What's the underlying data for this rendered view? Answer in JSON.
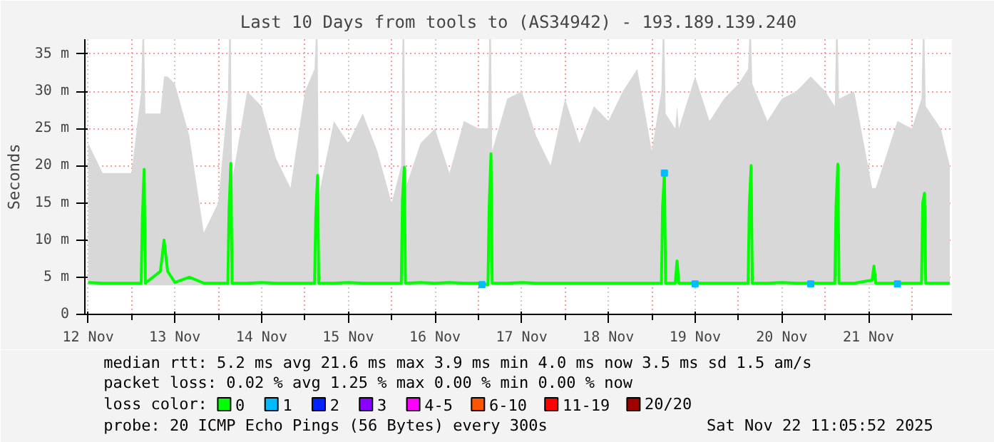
{
  "chart_data": {
    "type": "line",
    "title": "Last 10 Days from tools to (AS34942) - 193.189.139.240",
    "ylabel": "Seconds",
    "xlim": [
      "2025-11-12T11:05",
      "2025-11-22T11:05"
    ],
    "xticks": [
      {
        "value": "2025-11-12T12:00",
        "label": "12 Nov"
      },
      {
        "value": "2025-11-13T00:00",
        "label": null
      },
      {
        "value": "2025-11-13T12:00",
        "label": "13 Nov"
      },
      {
        "value": "2025-11-14T00:00",
        "label": null
      },
      {
        "value": "2025-11-14T12:00",
        "label": "14 Nov"
      },
      {
        "value": "2025-11-15T00:00",
        "label": null
      },
      {
        "value": "2025-11-15T12:00",
        "label": "15 Nov"
      },
      {
        "value": "2025-11-16T00:00",
        "label": null
      },
      {
        "value": "2025-11-16T12:00",
        "label": "16 Nov"
      },
      {
        "value": "2025-11-17T00:00",
        "label": null
      },
      {
        "value": "2025-11-17T12:00",
        "label": "17 Nov"
      },
      {
        "value": "2025-11-18T00:00",
        "label": null
      },
      {
        "value": "2025-11-18T12:00",
        "label": "18 Nov"
      },
      {
        "value": "2025-11-19T00:00",
        "label": null
      },
      {
        "value": "2025-11-19T12:00",
        "label": "19 Nov"
      },
      {
        "value": "2025-11-20T00:00",
        "label": null
      },
      {
        "value": "2025-11-20T12:00",
        "label": "20 Nov"
      },
      {
        "value": "2025-11-21T00:00",
        "label": null
      },
      {
        "value": "2025-11-21T12:00",
        "label": "21 Nov"
      },
      {
        "value": "2025-11-22T00:00",
        "label": null
      }
    ],
    "ylim": [
      0,
      37
    ],
    "yticks": [
      0,
      {
        "value": 5,
        "label": "5 m"
      },
      {
        "value": 10,
        "label": "10 m"
      },
      {
        "value": 15,
        "label": "15 m"
      },
      {
        "value": 20,
        "label": "20 m"
      },
      {
        "value": 25,
        "label": "25 m"
      },
      {
        "value": 30,
        "label": "30 m"
      },
      {
        "value": 35,
        "label": "35 m"
      }
    ],
    "grid": true,
    "legend": "bottom",
    "legend_title": "loss color:",
    "series": [
      {
        "name": "0",
        "color": "#00ff00",
        "x": [
          "2025-11-12T12:00",
          "2025-11-12T16:00",
          "2025-11-12T20:00",
          "2025-11-13T00:00",
          "2025-11-13T02:40",
          "2025-11-13T03:00",
          "2025-11-13T03:30",
          "2025-11-13T03:50",
          "2025-11-13T08:00",
          "2025-11-13T09:00",
          "2025-11-13T10:00",
          "2025-11-13T12:00",
          "2025-11-13T16:00",
          "2025-11-13T20:00",
          "2025-11-14T00:00",
          "2025-11-14T02:40",
          "2025-11-14T03:00",
          "2025-11-14T03:30",
          "2025-11-14T03:50",
          "2025-11-14T08:00",
          "2025-11-14T12:00",
          "2025-11-14T16:00",
          "2025-11-14T20:00",
          "2025-11-15T00:00",
          "2025-11-15T02:40",
          "2025-11-15T03:00",
          "2025-11-15T03:30",
          "2025-11-15T03:50",
          "2025-11-15T08:00",
          "2025-11-15T12:00",
          "2025-11-15T16:00",
          "2025-11-15T20:00",
          "2025-11-16T00:00",
          "2025-11-16T02:40",
          "2025-11-16T03:00",
          "2025-11-16T03:30",
          "2025-11-16T03:50",
          "2025-11-16T08:00",
          "2025-11-16T12:00",
          "2025-11-16T16:00",
          "2025-11-16T20:00",
          "2025-11-17T00:00",
          "2025-11-17T02:40",
          "2025-11-17T03:00",
          "2025-11-17T03:30",
          "2025-11-17T03:50",
          "2025-11-17T08:00",
          "2025-11-17T12:00",
          "2025-11-17T16:00",
          "2025-11-17T20:00",
          "2025-11-18T00:00",
          "2025-11-18T04:00",
          "2025-11-18T08:00",
          "2025-11-18T12:00",
          "2025-11-18T16:00",
          "2025-11-18T20:00",
          "2025-11-19T00:00",
          "2025-11-19T02:40",
          "2025-11-19T03:00",
          "2025-11-19T03:30",
          "2025-11-19T03:50",
          "2025-11-19T06:30",
          "2025-11-19T07:00",
          "2025-11-19T07:30",
          "2025-11-19T12:00",
          "2025-11-19T16:00",
          "2025-11-19T20:00",
          "2025-11-20T00:00",
          "2025-11-20T02:40",
          "2025-11-20T03:00",
          "2025-11-20T03:30",
          "2025-11-20T03:50",
          "2025-11-20T08:00",
          "2025-11-20T12:00",
          "2025-11-20T16:00",
          "2025-11-20T20:00",
          "2025-11-21T00:00",
          "2025-11-21T02:40",
          "2025-11-21T03:00",
          "2025-11-21T03:30",
          "2025-11-21T03:50",
          "2025-11-21T08:00",
          "2025-11-21T13:00",
          "2025-11-21T13:30",
          "2025-11-21T14:00",
          "2025-11-21T20:00",
          "2025-11-22T00:00",
          "2025-11-22T02:40",
          "2025-11-22T03:00",
          "2025-11-22T03:30",
          "2025-11-22T03:50",
          "2025-11-22T08:00",
          "2025-11-22T10:30"
        ],
        "values": [
          4.3,
          4.2,
          4.2,
          4.2,
          4.2,
          13,
          19.5,
          4.2,
          5.8,
          10,
          5.8,
          4.3,
          5,
          4.2,
          4.2,
          4.2,
          14.2,
          20.3,
          4.2,
          4.2,
          4.3,
          4.2,
          4.2,
          4.2,
          4.2,
          13.3,
          18.7,
          4.2,
          4.2,
          4.3,
          4.2,
          4.2,
          4.2,
          4.2,
          15.5,
          19.8,
          4.2,
          4.3,
          4.2,
          4.3,
          4.2,
          4.2,
          4,
          14.5,
          21.6,
          4.2,
          4.2,
          4.3,
          4.2,
          4.2,
          4.2,
          4.2,
          4.2,
          4.2,
          4.2,
          4.2,
          4.2,
          4.2,
          14.5,
          19,
          4.2,
          4.2,
          7.2,
          4.2,
          4.2,
          4.2,
          4.2,
          4.2,
          4.2,
          14.5,
          20,
          4.2,
          4.2,
          4.3,
          4.2,
          4.2,
          4.2,
          4.2,
          14.5,
          20.2,
          4.2,
          4.2,
          4.6,
          6.5,
          4.2,
          4.2,
          4.2,
          4.2,
          15,
          16.3,
          4.2,
          4.2,
          4.2
        ],
        "lower": [
          3.9,
          3.9,
          3.9,
          3.9,
          3.9,
          3.9,
          3.9,
          3.9,
          3.9,
          3.9,
          3.9,
          3.9,
          3.9,
          3.9,
          3.9,
          3.9,
          3.9,
          3.9,
          3.9,
          3.9,
          3.9,
          3.9,
          3.9,
          3.9,
          3.9,
          3.9,
          3.9,
          3.9,
          3.9,
          3.9,
          3.9,
          3.9,
          3.9,
          3.9,
          3.9,
          3.9,
          3.9,
          3.9,
          3.9,
          3.9,
          3.9,
          3.9,
          3.9,
          3.9,
          3.9,
          3.9,
          3.9,
          3.9,
          3.9,
          3.9,
          3.9,
          3.9,
          3.9,
          3.9,
          3.9,
          3.9,
          3.9,
          3.9,
          3.9,
          3.9,
          3.9,
          3.9,
          3.9,
          3.9,
          3.9,
          3.9,
          3.9,
          3.9,
          3.9,
          3.9,
          3.9,
          3.9,
          3.9,
          3.9,
          3.9,
          3.9,
          3.9,
          3.9,
          3.9,
          3.9,
          3.9,
          3.9,
          3.9,
          3.9,
          3.9,
          3.9,
          3.9,
          3.9,
          3.9,
          3.9,
          3.9,
          3.9,
          3.9
        ],
        "upper": [
          23,
          19,
          19,
          19,
          30,
          37,
          37,
          27,
          27,
          32,
          32,
          31,
          24,
          11,
          15,
          29,
          37,
          37,
          18,
          30,
          28,
          21,
          17,
          30,
          33,
          37,
          37,
          16,
          26,
          23,
          27,
          22,
          15,
          20,
          37,
          37,
          17,
          23,
          25,
          19,
          26,
          25,
          25,
          37,
          37,
          22,
          29,
          30,
          24,
          20,
          29,
          23,
          28,
          26,
          30,
          33,
          22,
          30,
          37,
          37,
          27,
          25,
          28,
          25,
          32,
          26,
          29,
          31,
          33,
          37,
          37,
          31,
          26,
          29,
          30,
          32,
          30,
          28,
          37,
          37,
          29,
          30,
          17,
          17,
          17,
          26,
          25,
          29,
          37,
          37,
          28,
          25,
          20
        ]
      },
      {
        "name": "1",
        "color": "#00bbff",
        "type": "scatter",
        "marker": "square",
        "x": [
          "2025-11-17T01:00",
          "2025-11-19T03:30",
          "2025-11-19T12:00",
          "2025-11-20T20:00",
          "2025-11-21T20:00"
        ],
        "values": [
          4,
          19,
          4.1,
          4.1,
          4.1
        ]
      },
      {
        "name": "2",
        "color": "#0022ff",
        "type": "scatter",
        "marker": "square"
      },
      {
        "name": "3",
        "color": "#8a00ff",
        "type": "scatter",
        "marker": "square"
      },
      {
        "name": "4-5",
        "color": "#ff00ff",
        "type": "scatter",
        "marker": "square"
      },
      {
        "name": "6-10",
        "color": "#ff5500",
        "type": "scatter",
        "marker": "square"
      },
      {
        "name": "11-19",
        "color": "#ff0000",
        "type": "scatter",
        "marker": "square"
      },
      {
        "name": "20/20",
        "color": "#a10000",
        "type": "scatter",
        "marker": "square"
      }
    ],
    "annotations": [
      "median rtt:  5.2 ms avg  21.6 ms max  3.9 ms min  4.0 ms now  3.5 ms sd  1.5   am/s",
      "packet loss: 0.02 % avg  1.25 % max  0.00 % min  0.00 % now",
      "probe:       20 ICMP Echo Pings (56 Bytes) every 300s",
      "Sat Nov 22 11:05:52 2025"
    ]
  }
}
